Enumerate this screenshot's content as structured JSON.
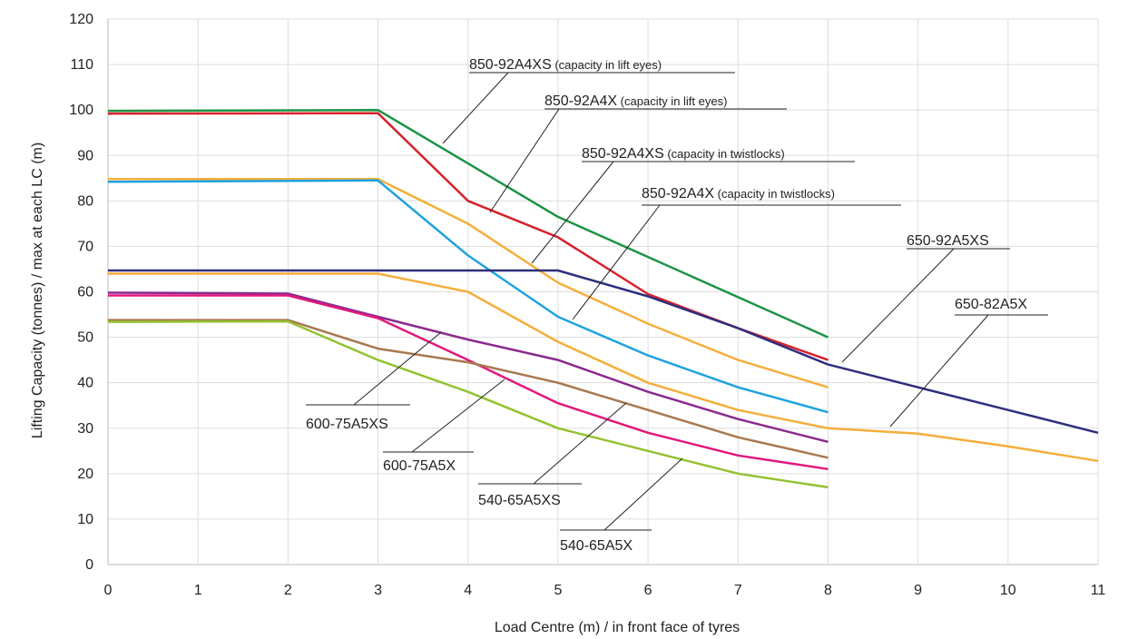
{
  "chart_data": {
    "type": "line",
    "xlabel": "Load Centre (m) / in front face of tyres",
    "ylabel": "Lifting Capacity (tonnes) / max at each LC (m)",
    "xlim": [
      0,
      11
    ],
    "ylim": [
      0,
      120
    ],
    "xticks": [
      "0",
      "1",
      "2",
      "3",
      "4",
      "5",
      "6",
      "7",
      "8",
      "9",
      "10",
      "11"
    ],
    "yticks": [
      "0",
      "10",
      "20",
      "30",
      "40",
      "50",
      "60",
      "70",
      "80",
      "90",
      "100",
      "110",
      "120"
    ],
    "grid": true,
    "series": [
      {
        "name": "850-92A4XS",
        "color": "#1a9444",
        "x": [
          0,
          3,
          5,
          8
        ],
        "y": [
          99.8,
          100,
          76.5,
          50
        ]
      },
      {
        "name": "850-92A4X",
        "color": "#d6202a",
        "x": [
          0,
          3,
          4,
          5,
          6,
          7,
          8
        ],
        "y": [
          99.2,
          99.3,
          80,
          72,
          59.5,
          52,
          45
        ]
      },
      {
        "name": "850-92A4XS",
        "color": "#f5ae3b",
        "x": [
          0,
          3,
          4,
          5,
          6,
          7,
          8
        ],
        "y": [
          84.8,
          84.8,
          75,
          62,
          53,
          45,
          39
        ]
      },
      {
        "name": "850-92A4X",
        "color": "#1ea3df",
        "x": [
          0,
          3,
          4,
          5,
          6,
          7,
          8
        ],
        "y": [
          84.2,
          84.5,
          68,
          54.5,
          46,
          39,
          33.5
        ]
      },
      {
        "name": "650-92A5XS",
        "color": "#2e2f7c",
        "x": [
          0,
          5,
          6,
          7,
          8,
          9,
          10,
          11
        ],
        "y": [
          64.7,
          64.7,
          59,
          52,
          44,
          39,
          34,
          29
        ]
      },
      {
        "name": "650-82A5X",
        "color": "#f5ae3b",
        "x": [
          0,
          3,
          4,
          5,
          6,
          7,
          8,
          9,
          10,
          11
        ],
        "y": [
          64,
          64,
          60,
          49,
          40,
          34,
          30,
          28.8,
          26,
          22.8
        ]
      },
      {
        "name": "600-75A5XS",
        "color": "#8b2a8f",
        "x": [
          0,
          2,
          3,
          4,
          5,
          6,
          7,
          8
        ],
        "y": [
          59.8,
          59.6,
          54.5,
          49.5,
          45,
          38,
          32,
          27
        ]
      },
      {
        "name": "600-75A5X",
        "color": "#e2187c",
        "x": [
          0,
          2,
          3,
          4,
          5,
          6,
          7,
          8
        ],
        "y": [
          59.2,
          59.2,
          54.2,
          45,
          35.5,
          29,
          24,
          21
        ]
      },
      {
        "name": "540-65A5XS",
        "color": "#a8784f",
        "x": [
          0,
          2,
          3,
          4,
          5,
          6,
          7,
          8
        ],
        "y": [
          53.8,
          53.8,
          47.5,
          44.5,
          40,
          34,
          28,
          23.5
        ]
      },
      {
        "name": "540-65A5X",
        "color": "#93c232",
        "x": [
          0,
          2,
          3,
          4,
          5,
          6,
          7,
          8
        ],
        "y": [
          53.4,
          53.5,
          45,
          38,
          30,
          25,
          20,
          17
        ]
      }
    ],
    "annotations": [
      {
        "main": "850-92A4XS",
        "note": "(capacity in lift eyes)",
        "series": 0
      },
      {
        "main": "850-92A4X",
        "note": "(capacity in lift eyes)",
        "series": 1
      },
      {
        "main": "850-92A4XS",
        "note": "(capacity in twistlocks)",
        "series": 2
      },
      {
        "main": "850-92A4X",
        "note": "(capacity in twistlocks)",
        "series": 3
      },
      {
        "main": "650-92A5XS",
        "note": "",
        "series": 4
      },
      {
        "main": "650-82A5X",
        "note": "",
        "series": 5
      },
      {
        "main": "600-75A5XS",
        "note": "",
        "series": 6
      },
      {
        "main": "600-75A5X",
        "note": "",
        "series": 7
      },
      {
        "main": "540-65A5XS",
        "note": "",
        "series": 8
      },
      {
        "main": "540-65A5X",
        "note": "",
        "series": 9
      }
    ]
  }
}
